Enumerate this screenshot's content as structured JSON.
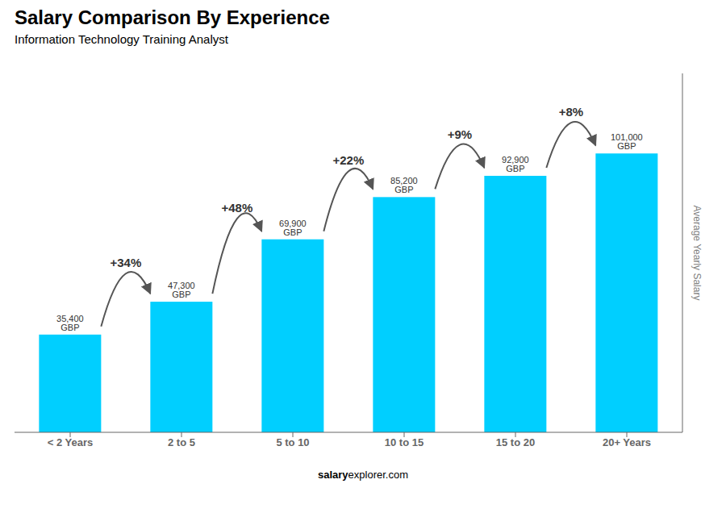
{
  "chart_data": {
    "type": "bar",
    "title": "Salary Comparison By Experience",
    "subtitle": "Information Technology Training Analyst",
    "categories": [
      "< 2 Years",
      "2 to 5",
      "5 to 10",
      "10 to 15",
      "15 to 20",
      "20+ Years"
    ],
    "values": [
      35400,
      47300,
      69900,
      85200,
      92900,
      101000
    ],
    "value_labels": [
      "35,400 GBP",
      "47,300 GBP",
      "69,900 GBP",
      "85,200 GBP",
      "92,900 GBP",
      "101,000 GBP"
    ],
    "data_labels": true,
    "color": "#00cfff",
    "ylim": [
      0,
      130000
    ],
    "tick_labels": "x",
    "ylabel": "Average Yearly Salary",
    "annotations": [
      "+34%",
      "+48%",
      "+22%",
      "+9%",
      "+8%"
    ],
    "footer": [
      "salary",
      "explorer.com"
    ]
  }
}
